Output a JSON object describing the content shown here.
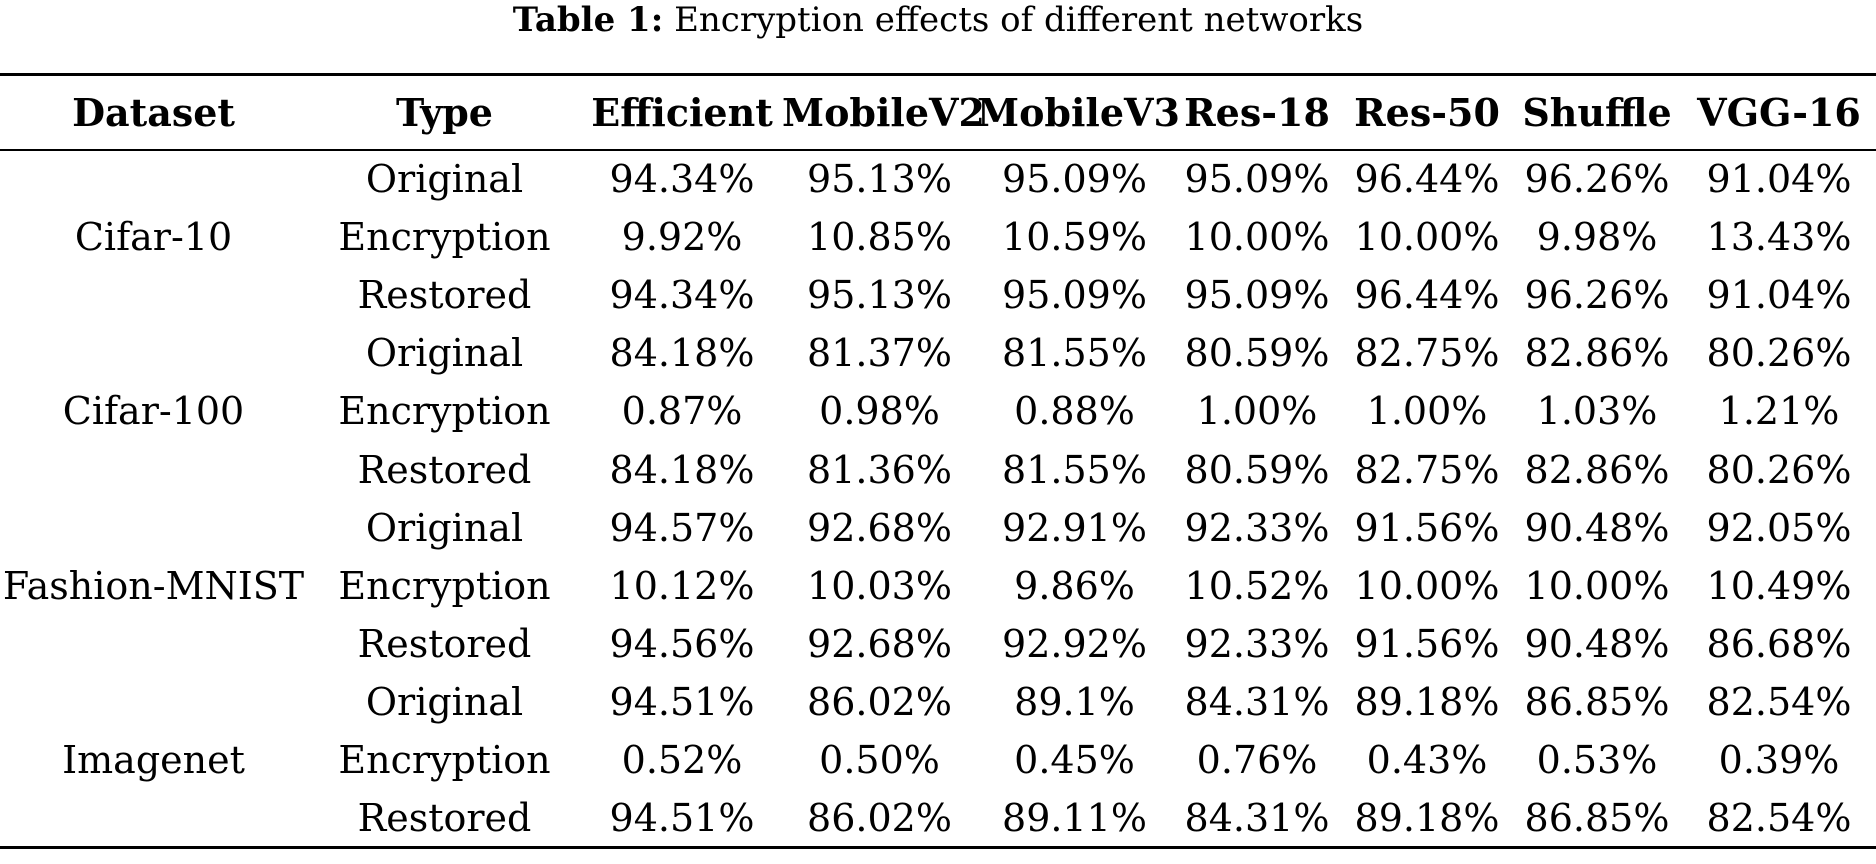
{
  "caption": {
    "label": "Table 1:",
    "text": "Encryption effects of different networks"
  },
  "table": {
    "headers": [
      "Dataset",
      "Type",
      "Efficient",
      "MobileV2",
      "MobileV3",
      "Res-18",
      "Res-50",
      "Shuffle",
      "VGG-16"
    ],
    "groups": [
      {
        "dataset": "Cifar-10",
        "rows": [
          {
            "type": "Original",
            "values": [
              "94.34%",
              "95.13%",
              "95.09%",
              "95.09%",
              "96.44%",
              "96.26%",
              "91.04%"
            ]
          },
          {
            "type": "Encryption",
            "values": [
              "9.92%",
              "10.85%",
              "10.59%",
              "10.00%",
              "10.00%",
              "9.98%",
              "13.43%"
            ]
          },
          {
            "type": "Restored",
            "values": [
              "94.34%",
              "95.13%",
              "95.09%",
              "95.09%",
              "96.44%",
              "96.26%",
              "91.04%"
            ]
          }
        ]
      },
      {
        "dataset": "Cifar-100",
        "rows": [
          {
            "type": "Original",
            "values": [
              "84.18%",
              "81.37%",
              "81.55%",
              "80.59%",
              "82.75%",
              "82.86%",
              "80.26%"
            ]
          },
          {
            "type": "Encryption",
            "values": [
              "0.87%",
              "0.98%",
              "0.88%",
              "1.00%",
              "1.00%",
              "1.03%",
              "1.21%"
            ]
          },
          {
            "type": "Restored",
            "values": [
              "84.18%",
              "81.36%",
              "81.55%",
              "80.59%",
              "82.75%",
              "82.86%",
              "80.26%"
            ]
          }
        ]
      },
      {
        "dataset": "Fashion-MNIST",
        "rows": [
          {
            "type": "Original",
            "values": [
              "94.57%",
              "92.68%",
              "92.91%",
              "92.33%",
              "91.56%",
              "90.48%",
              "92.05%"
            ]
          },
          {
            "type": "Encryption",
            "values": [
              "10.12%",
              "10.03%",
              "9.86%",
              "10.52%",
              "10.00%",
              "10.00%",
              "10.49%"
            ]
          },
          {
            "type": "Restored",
            "values": [
              "94.56%",
              "92.68%",
              "92.92%",
              "92.33%",
              "91.56%",
              "90.48%",
              "86.68%"
            ]
          }
        ]
      },
      {
        "dataset": "Imagenet",
        "rows": [
          {
            "type": "Original",
            "values": [
              "94.51%",
              "86.02%",
              "89.1%",
              "84.31%",
              "89.18%",
              "86.85%",
              "82.54%"
            ]
          },
          {
            "type": "Encryption",
            "values": [
              "0.52%",
              "0.50%",
              "0.45%",
              "0.76%",
              "0.43%",
              "0.53%",
              "0.39%"
            ]
          },
          {
            "type": "Restored",
            "values": [
              "94.51%",
              "86.02%",
              "89.11%",
              "84.31%",
              "89.18%",
              "86.85%",
              "82.54%"
            ]
          }
        ]
      }
    ]
  }
}
